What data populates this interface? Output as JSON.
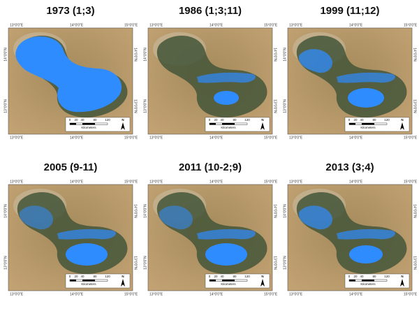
{
  "panels": [
    {
      "title": "1973 (1;3)"
    },
    {
      "title": "1986 (1;3;11)"
    },
    {
      "title": "1999 (11;12)"
    },
    {
      "title": "2005 (9-11)"
    },
    {
      "title": "2011 (10-2;9)"
    },
    {
      "title": "2013 (3;4)"
    }
  ],
  "longitude_labels": [
    "13°0'0\"E",
    "14°0'0\"E",
    "15°0'0\"E"
  ],
  "latitude_labels": [
    "14°0'0\"N",
    "13°0'0\"N"
  ],
  "scale_bar": {
    "ticks": [
      "0",
      "20",
      "40",
      "80",
      "120"
    ],
    "unit": "Kilometers",
    "north": "N"
  }
}
